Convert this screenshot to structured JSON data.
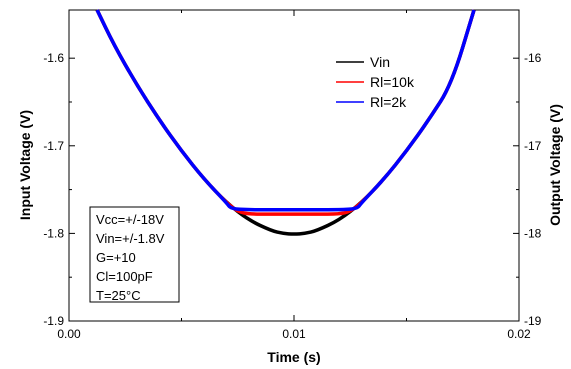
{
  "chart_data": {
    "type": "line",
    "xlabel": "Time (s)",
    "ylabel_left": "Input Voltage (V)",
    "ylabel_right": "Output Voltage (V)",
    "xlim": [
      0.0,
      0.02
    ],
    "ylim_left": [
      -1.9,
      -1.545
    ],
    "ylim_right": [
      -19,
      -15.45
    ],
    "x_ticks": [
      "0.00",
      "0.01",
      "0.02"
    ],
    "y_ticks_left": [
      "-1.6",
      "-1.7",
      "-1.8",
      "-1.9"
    ],
    "y_ticks_right": [
      "-16",
      "-17",
      "-18",
      "-19"
    ],
    "legend_position": "top-right",
    "grid": false,
    "series": [
      {
        "name": "Vin",
        "color": "#000000",
        "axis": "left",
        "x": [
          0.00125,
          0.002,
          0.003,
          0.004,
          0.005,
          0.006,
          0.007,
          0.008,
          0.009,
          0.0095,
          0.01,
          0.0105,
          0.011,
          0.012,
          0.013,
          0.014,
          0.015,
          0.016,
          0.017,
          0.018
        ],
        "y": [
          -1.545,
          -1.585,
          -1.63,
          -1.67,
          -1.706,
          -1.738,
          -1.765,
          -1.785,
          -1.797,
          -1.8,
          -1.801,
          -1.8,
          -1.797,
          -1.785,
          -1.765,
          -1.738,
          -1.706,
          -1.67,
          -1.63,
          -1.545
        ]
      },
      {
        "name": "Rl=10k",
        "color": "#ff0000",
        "axis": "right",
        "x": [
          0.00125,
          0.002,
          0.003,
          0.004,
          0.005,
          0.006,
          0.007,
          0.0075,
          0.008,
          0.009,
          0.01,
          0.011,
          0.012,
          0.0125,
          0.013,
          0.014,
          0.015,
          0.016,
          0.017,
          0.018
        ],
        "y": [
          -15.45,
          -15.85,
          -16.3,
          -16.7,
          -17.06,
          -17.38,
          -17.65,
          -17.75,
          -17.78,
          -17.78,
          -17.78,
          -17.78,
          -17.78,
          -17.75,
          -17.65,
          -17.38,
          -17.06,
          -16.7,
          -16.3,
          -15.45
        ]
      },
      {
        "name": "Rl=2k",
        "color": "#0000ff",
        "axis": "right",
        "x": [
          0.00125,
          0.002,
          0.003,
          0.004,
          0.005,
          0.006,
          0.007,
          0.0072,
          0.008,
          0.009,
          0.01,
          0.011,
          0.012,
          0.0128,
          0.013,
          0.014,
          0.015,
          0.016,
          0.017,
          0.018
        ],
        "y": [
          -15.45,
          -15.85,
          -16.3,
          -16.7,
          -17.06,
          -17.38,
          -17.65,
          -17.72,
          -17.73,
          -17.73,
          -17.73,
          -17.73,
          -17.73,
          -17.72,
          -17.65,
          -17.38,
          -17.06,
          -16.7,
          -16.3,
          -15.45
        ]
      }
    ],
    "annotation_lines": [
      "Vcc=+/-18V",
      "Vin=+/-1.8V",
      "G=+10",
      "Cl=100pF",
      "T=25°C"
    ]
  }
}
